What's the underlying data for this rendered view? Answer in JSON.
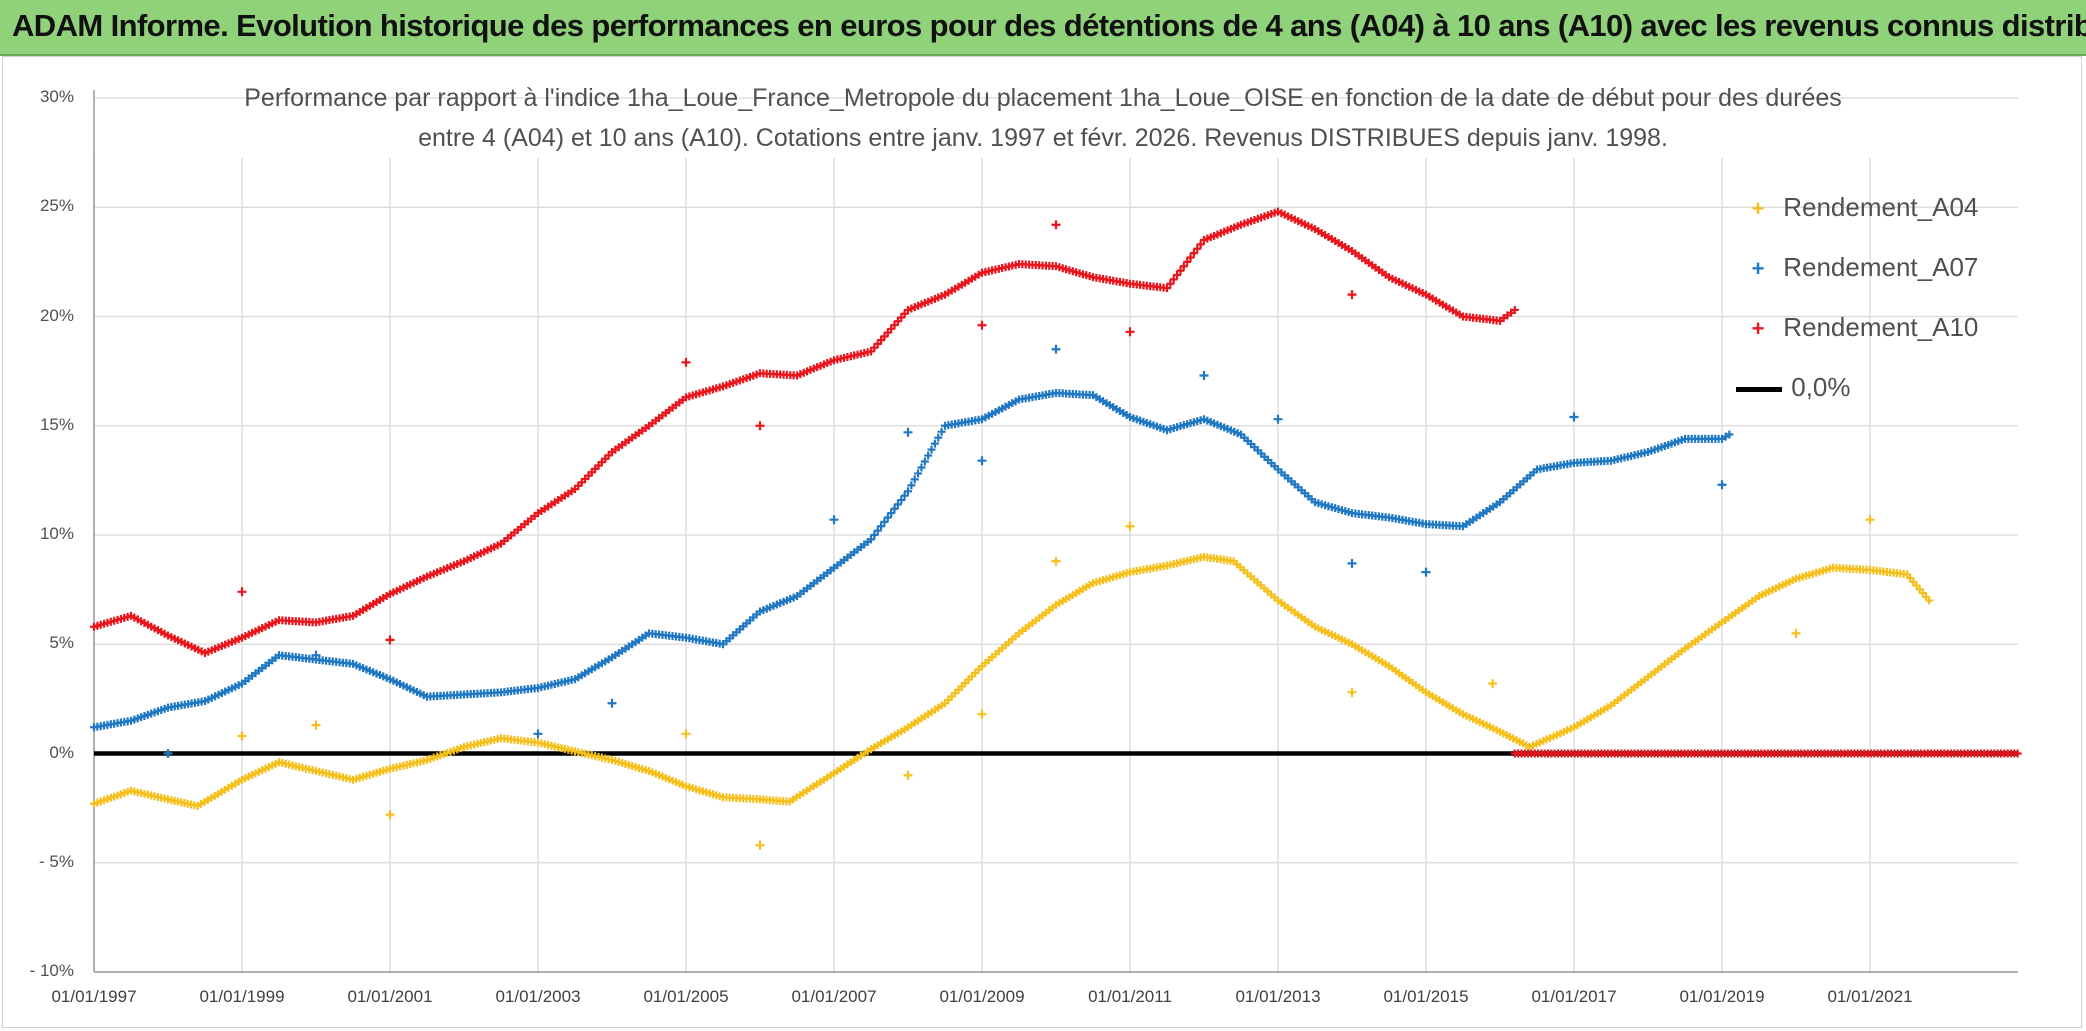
{
  "header": {
    "title": "ADAM Informe. Evolution historique des performances en euros pour des détentions de 4 ans (A04) à 10 ans (A10) avec les revenus connus distribués"
  },
  "colors": {
    "A04": "#f5bf1c",
    "A07": "#1f78c1",
    "A10": "#e8161c",
    "zero": "#000000",
    "grid": "#d9d9d9"
  },
  "chart_data": {
    "type": "scatter",
    "title_line1": "Performance par rapport à l'indice 1ha_Loue_France_Metropole  du placement 1ha_Loue_OISE en fonction de la date de début pour des durées",
    "title_line2": "entre 4 (A04) et 10 ans (A10). Cotations entre janv. 1997 et févr. 2026. Revenus DISTRIBUES depuis janv. 1998.",
    "ylim": [
      -10,
      30
    ],
    "xlim": [
      1997.0,
      2023.0
    ],
    "y_ticks": [
      "30%",
      "25%",
      "20%",
      "15%",
      "10%",
      "5%",
      "0%",
      "- 5%",
      "- 10%"
    ],
    "x_ticks": [
      "01/01/1997",
      "01/01/1999",
      "01/01/2001",
      "01/01/2003",
      "01/01/2005",
      "01/01/2007",
      "01/01/2009",
      "01/01/2011",
      "01/01/2013",
      "01/01/2015",
      "01/01/2017",
      "01/01/2019",
      "01/01/2021"
    ],
    "legend": [
      "Rendement_A04",
      "Rendement_A07",
      "Rendement_A10",
      "0,0%"
    ],
    "series": [
      {
        "name": "Rendement_A04",
        "points": [
          [
            1997.0,
            -2.3
          ],
          [
            1997.5,
            -1.7
          ],
          [
            1998.0,
            -2.1
          ],
          [
            1998.4,
            -2.4
          ],
          [
            1999.0,
            -1.2
          ],
          [
            1999.5,
            -0.4
          ],
          [
            2000.0,
            -0.8
          ],
          [
            2000.5,
            -1.2
          ],
          [
            2001.0,
            -0.7
          ],
          [
            2001.5,
            -0.3
          ],
          [
            2002.0,
            0.3
          ],
          [
            2002.5,
            0.7
          ],
          [
            2003.0,
            0.5
          ],
          [
            2003.5,
            0.1
          ],
          [
            2004.0,
            -0.3
          ],
          [
            2004.5,
            -0.8
          ],
          [
            2005.0,
            -1.5
          ],
          [
            2005.5,
            -2.0
          ],
          [
            2006.0,
            -2.1
          ],
          [
            2006.4,
            -2.2
          ],
          [
            2007.0,
            -0.9
          ],
          [
            2007.5,
            0.2
          ],
          [
            2008.0,
            1.2
          ],
          [
            2008.5,
            2.3
          ],
          [
            2009.0,
            4.0
          ],
          [
            2009.5,
            5.5
          ],
          [
            2010.0,
            6.8
          ],
          [
            2010.5,
            7.8
          ],
          [
            2011.0,
            8.3
          ],
          [
            2011.5,
            8.6
          ],
          [
            2012.0,
            9.0
          ],
          [
            2012.4,
            8.8
          ],
          [
            2013.0,
            7.0
          ],
          [
            2013.5,
            5.8
          ],
          [
            2014.0,
            5.0
          ],
          [
            2014.5,
            4.0
          ],
          [
            2015.0,
            2.8
          ],
          [
            2015.5,
            1.8
          ],
          [
            2016.0,
            1.0
          ],
          [
            2016.4,
            0.3
          ],
          [
            2017.0,
            1.2
          ],
          [
            2017.5,
            2.2
          ],
          [
            2018.0,
            3.5
          ],
          [
            2018.5,
            4.8
          ],
          [
            2019.0,
            6.0
          ],
          [
            2019.5,
            7.2
          ],
          [
            2020.0,
            8.0
          ],
          [
            2020.5,
            8.5
          ],
          [
            2021.0,
            8.4
          ],
          [
            2021.5,
            8.2
          ],
          [
            2021.8,
            7.0
          ]
        ],
        "outliers": [
          [
            1999.0,
            0.8
          ],
          [
            2000.0,
            1.3
          ],
          [
            2001.0,
            -2.8
          ],
          [
            2005.0,
            0.9
          ],
          [
            2006.0,
            -4.2
          ],
          [
            2008.0,
            -1.0
          ],
          [
            2009.0,
            1.8
          ],
          [
            2010.0,
            8.8
          ],
          [
            2011.0,
            10.4
          ],
          [
            2014.0,
            2.8
          ],
          [
            2015.9,
            3.2
          ],
          [
            2020.0,
            5.5
          ],
          [
            2021.0,
            10.7
          ]
        ]
      },
      {
        "name": "Rendement_A07",
        "points": [
          [
            1997.0,
            1.2
          ],
          [
            1997.5,
            1.5
          ],
          [
            1998.0,
            2.1
          ],
          [
            1998.5,
            2.4
          ],
          [
            1999.0,
            3.2
          ],
          [
            1999.5,
            4.5
          ],
          [
            2000.0,
            4.3
          ],
          [
            2000.5,
            4.1
          ],
          [
            2001.0,
            3.4
          ],
          [
            2001.5,
            2.6
          ],
          [
            2002.0,
            2.7
          ],
          [
            2002.5,
            2.8
          ],
          [
            2003.0,
            3.0
          ],
          [
            2003.5,
            3.4
          ],
          [
            2004.0,
            4.4
          ],
          [
            2004.5,
            5.5
          ],
          [
            2005.0,
            5.3
          ],
          [
            2005.5,
            5.0
          ],
          [
            2006.0,
            6.5
          ],
          [
            2006.5,
            7.2
          ],
          [
            2007.0,
            8.5
          ],
          [
            2007.5,
            9.8
          ],
          [
            2008.0,
            12.0
          ],
          [
            2008.5,
            15.0
          ],
          [
            2009.0,
            15.3
          ],
          [
            2009.5,
            16.2
          ],
          [
            2010.0,
            16.5
          ],
          [
            2010.5,
            16.4
          ],
          [
            2011.0,
            15.4
          ],
          [
            2011.5,
            14.8
          ],
          [
            2012.0,
            15.3
          ],
          [
            2012.5,
            14.6
          ],
          [
            2013.0,
            13.0
          ],
          [
            2013.5,
            11.5
          ],
          [
            2014.0,
            11.0
          ],
          [
            2014.5,
            10.8
          ],
          [
            2015.0,
            10.5
          ],
          [
            2015.5,
            10.4
          ],
          [
            2016.0,
            11.5
          ],
          [
            2016.5,
            13.0
          ],
          [
            2017.0,
            13.3
          ],
          [
            2017.5,
            13.4
          ],
          [
            2018.0,
            13.8
          ],
          [
            2018.5,
            14.4
          ],
          [
            2019.0,
            14.4
          ],
          [
            2019.1,
            14.6
          ]
        ],
        "outliers": [
          [
            1998.0,
            0.0
          ],
          [
            2000.0,
            4.5
          ],
          [
            2003.0,
            0.9
          ],
          [
            2004.0,
            2.3
          ],
          [
            2007.0,
            10.7
          ],
          [
            2008.0,
            14.7
          ],
          [
            2009.0,
            13.4
          ],
          [
            2010.0,
            18.5
          ],
          [
            2012.0,
            17.3
          ],
          [
            2013.0,
            15.3
          ],
          [
            2014.0,
            8.7
          ],
          [
            2015.0,
            8.3
          ],
          [
            2017.0,
            15.4
          ],
          [
            2019.0,
            12.3
          ]
        ]
      },
      {
        "name": "Rendement_A10",
        "points": [
          [
            1997.0,
            5.8
          ],
          [
            1997.5,
            6.3
          ],
          [
            1998.0,
            5.4
          ],
          [
            1998.5,
            4.6
          ],
          [
            1999.0,
            5.3
          ],
          [
            1999.5,
            6.1
          ],
          [
            2000.0,
            6.0
          ],
          [
            2000.5,
            6.3
          ],
          [
            2001.0,
            7.3
          ],
          [
            2001.5,
            8.1
          ],
          [
            2002.0,
            8.8
          ],
          [
            2002.5,
            9.6
          ],
          [
            2003.0,
            11.0
          ],
          [
            2003.5,
            12.1
          ],
          [
            2004.0,
            13.8
          ],
          [
            2004.5,
            15.0
          ],
          [
            2005.0,
            16.3
          ],
          [
            2005.5,
            16.8
          ],
          [
            2006.0,
            17.4
          ],
          [
            2006.5,
            17.3
          ],
          [
            2007.0,
            18.0
          ],
          [
            2007.5,
            18.4
          ],
          [
            2008.0,
            20.3
          ],
          [
            2008.5,
            21.0
          ],
          [
            2009.0,
            22.0
          ],
          [
            2009.5,
            22.4
          ],
          [
            2010.0,
            22.3
          ],
          [
            2010.5,
            21.8
          ],
          [
            2011.0,
            21.5
          ],
          [
            2011.5,
            21.3
          ],
          [
            2012.0,
            23.5
          ],
          [
            2012.5,
            24.2
          ],
          [
            2013.0,
            24.8
          ],
          [
            2013.5,
            24.0
          ],
          [
            2014.0,
            23.0
          ],
          [
            2014.5,
            21.8
          ],
          [
            2015.0,
            21.0
          ],
          [
            2015.5,
            20.0
          ],
          [
            2016.0,
            19.8
          ],
          [
            2016.2,
            20.3
          ]
        ],
        "outliers": [
          [
            1999.0,
            7.4
          ],
          [
            2001.0,
            5.2
          ],
          [
            2005.0,
            17.9
          ],
          [
            2006.0,
            15.0
          ],
          [
            2009.0,
            19.6
          ],
          [
            2010.0,
            24.2
          ],
          [
            2011.0,
            19.3
          ],
          [
            2014.0,
            21.0
          ]
        ]
      },
      {
        "name": "0,0%",
        "line": [
          [
            1997.0,
            0.0
          ],
          [
            2023.0,
            0.0
          ]
        ]
      },
      {
        "name": "zero_dense_A10",
        "range": [
          2016.2,
          2023.0
        ],
        "value": 0.0
      }
    ]
  }
}
